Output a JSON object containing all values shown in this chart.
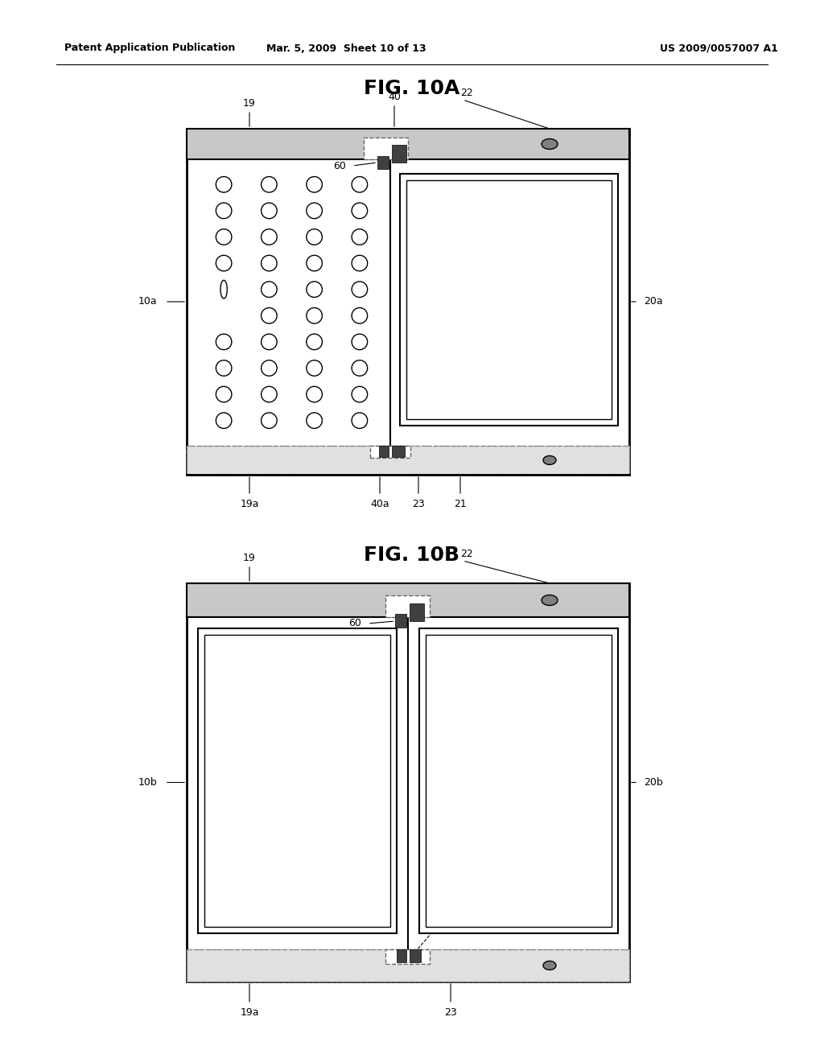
{
  "header_left": "Patent Application Publication",
  "header_mid": "Mar. 5, 2009  Sheet 10 of 13",
  "header_right": "US 2009/0057007 A1",
  "fig_a_title": "FIG. 10A",
  "fig_b_title": "FIG. 10B",
  "bg_color": "#ffffff",
  "line_color": "#000000",
  "gray_light": "#c8c8c8",
  "gray_bar": "#b0b0b0",
  "gray_cam": "#808080",
  "dark_block": "#404040"
}
